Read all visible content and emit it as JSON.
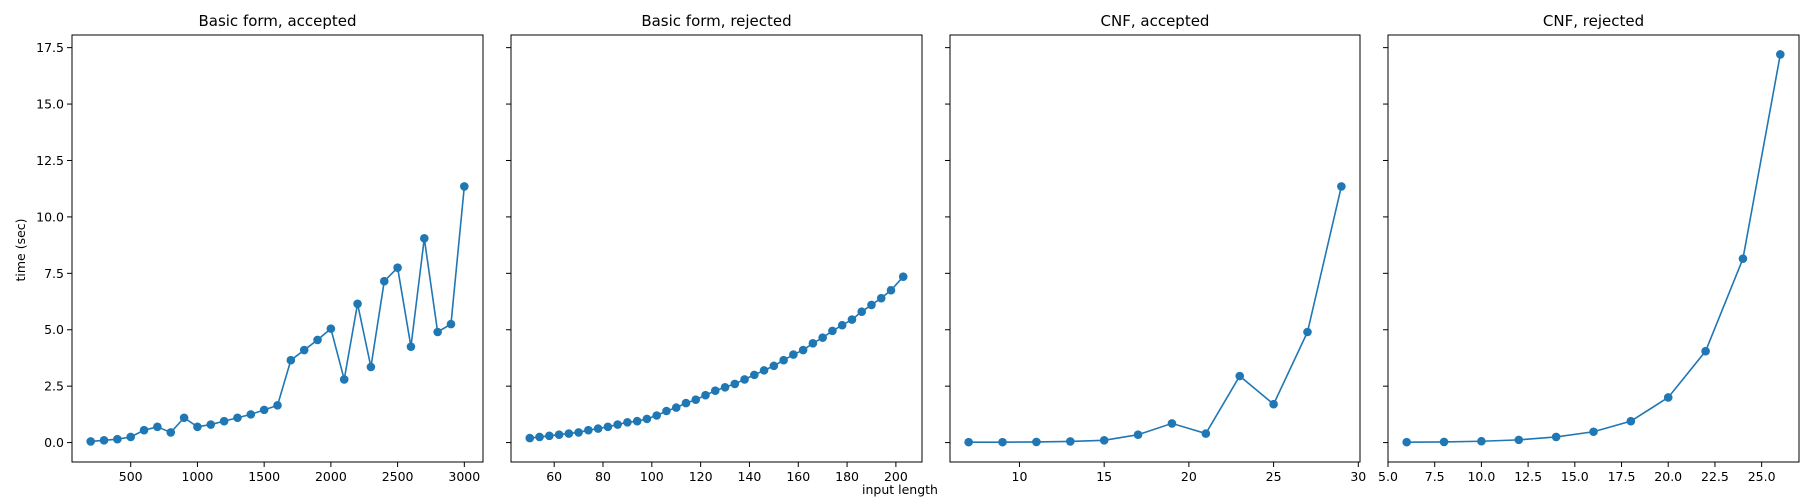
{
  "figure": {
    "xlabel": "input length",
    "ylabel": "time (sec)",
    "sharey": true,
    "ylim": [
      -0.86,
      18.06
    ],
    "yticks": [
      "0.0",
      "2.5",
      "5.0",
      "7.5",
      "10.0",
      "12.5",
      "15.0",
      "17.5"
    ],
    "series_color": "#1f77b4"
  },
  "chart_data": [
    {
      "type": "line",
      "title": "Basic form, accepted",
      "xlim": [
        60,
        3140
      ],
      "xticks": [
        "500",
        "1000",
        "1500",
        "2000",
        "2500",
        "3000"
      ],
      "ylim": [
        -0.86,
        18.06
      ],
      "series": [
        {
          "marker": "circle",
          "x": [
            200,
            300,
            400,
            500,
            600,
            700,
            800,
            900,
            1000,
            1100,
            1200,
            1300,
            1400,
            1500,
            1600,
            1700,
            1800,
            1900,
            2000,
            2100,
            2200,
            2300,
            2400,
            2500,
            2600,
            2700,
            2800,
            2900,
            3000
          ],
          "y": [
            0.05,
            0.1,
            0.15,
            0.25,
            0.55,
            0.7,
            0.45,
            1.1,
            0.7,
            0.8,
            0.95,
            1.1,
            1.25,
            1.45,
            1.65,
            3.65,
            4.1,
            4.55,
            5.05,
            2.8,
            6.15,
            3.35,
            7.15,
            7.75,
            4.25,
            9.05,
            4.9,
            5.25,
            11.35
          ]
        }
      ]
    },
    {
      "type": "line",
      "title": "Basic form, rejected",
      "xlim": [
        42.3,
        210.7
      ],
      "xticks": [
        "60",
        "80",
        "100",
        "120",
        "140",
        "160",
        "180",
        "200"
      ],
      "ylim": [
        -0.86,
        18.06
      ],
      "series": [
        {
          "marker": "circle",
          "x": [
            50,
            54,
            58,
            62,
            66,
            70,
            74,
            78,
            82,
            86,
            90,
            94,
            98,
            102,
            106,
            110,
            114,
            118,
            122,
            126,
            130,
            134,
            138,
            142,
            146,
            150,
            154,
            158,
            162,
            166,
            170,
            174,
            178,
            182,
            186,
            190,
            194,
            198,
            203
          ],
          "y": [
            0.2,
            0.25,
            0.3,
            0.35,
            0.4,
            0.45,
            0.55,
            0.62,
            0.7,
            0.8,
            0.9,
            0.95,
            1.05,
            1.2,
            1.4,
            1.55,
            1.75,
            1.9,
            2.1,
            2.3,
            2.45,
            2.6,
            2.8,
            3.0,
            3.2,
            3.4,
            3.65,
            3.9,
            4.1,
            4.4,
            4.65,
            4.95,
            5.2,
            5.45,
            5.8,
            6.1,
            6.4,
            6.75,
            7.35
          ]
        }
      ]
    },
    {
      "type": "line",
      "title": "CNF, accepted",
      "xlim": [
        5.9,
        30.1
      ],
      "xticks": [
        "10",
        "15",
        "20",
        "25",
        "30"
      ],
      "ylim": [
        -0.86,
        18.06
      ],
      "series": [
        {
          "marker": "circle",
          "x": [
            7,
            9,
            11,
            13,
            15,
            17,
            19,
            21,
            23,
            25,
            27,
            29
          ],
          "y": [
            0.02,
            0.02,
            0.03,
            0.05,
            0.1,
            0.35,
            0.85,
            0.4,
            2.95,
            1.7,
            4.9,
            11.35
          ]
        }
      ]
    },
    {
      "type": "line",
      "title": "CNF, rejected",
      "xlim": [
        5.0,
        27.0
      ],
      "xticks": [
        "5.0",
        "7.5",
        "10.0",
        "12.5",
        "15.0",
        "17.5",
        "20.0",
        "22.5",
        "25.0"
      ],
      "ylim": [
        -0.86,
        18.06
      ],
      "series": [
        {
          "marker": "circle",
          "x": [
            6,
            8,
            10,
            12,
            14,
            16,
            18,
            20,
            22,
            24,
            26
          ],
          "y": [
            0.02,
            0.03,
            0.06,
            0.12,
            0.25,
            0.48,
            0.95,
            2.0,
            4.05,
            8.15,
            17.2
          ]
        }
      ]
    }
  ]
}
